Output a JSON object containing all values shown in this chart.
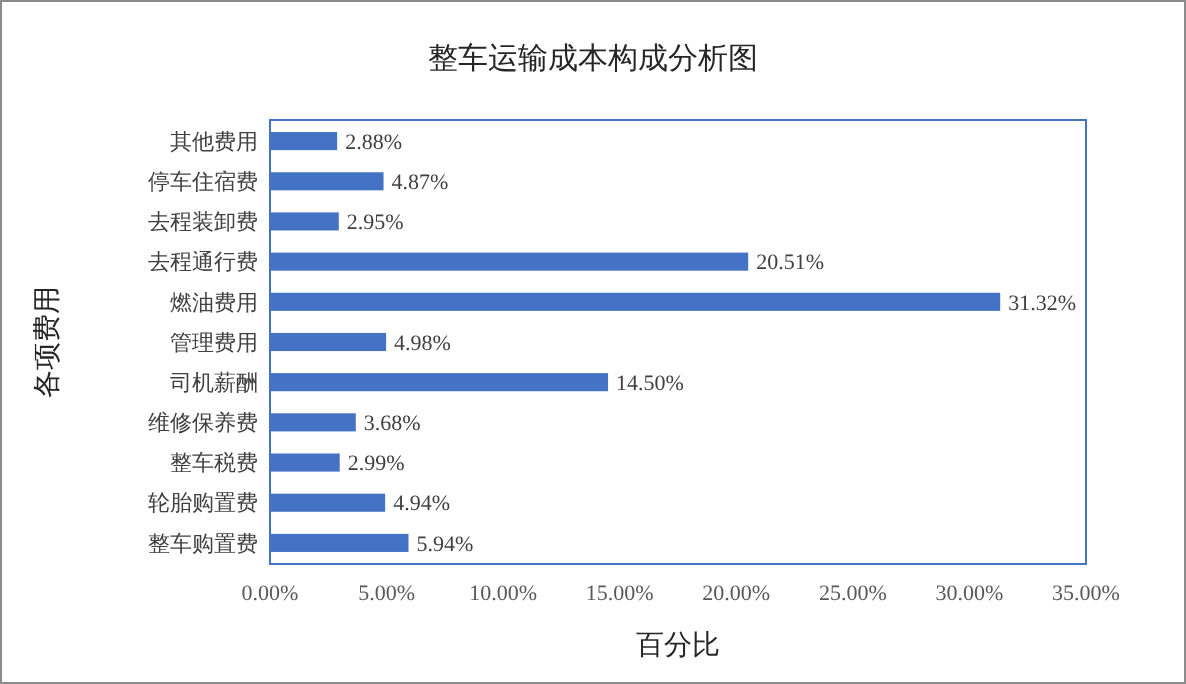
{
  "chart_data": {
    "type": "bar",
    "orientation": "horizontal",
    "title": "整车运输成本构成分析图",
    "xlabel": "百分比",
    "ylabel": "各项费用",
    "categories": [
      "其他费用",
      "停车住宿费",
      "去程装卸费",
      "去程通行费",
      "燃油费用",
      "管理费用",
      "司机薪酬",
      "维修保养费",
      "整车税费",
      "轮胎购置费",
      "整车购置费"
    ],
    "values": [
      2.88,
      4.87,
      2.95,
      20.51,
      31.32,
      4.98,
      14.5,
      3.68,
      2.99,
      4.94,
      5.94
    ],
    "value_labels": [
      "2.88%",
      "4.87%",
      "2.95%",
      "20.51%",
      "31.32%",
      "4.98%",
      "14.50%",
      "3.68%",
      "2.99%",
      "4.94%",
      "5.94%"
    ],
    "color": "#4472c4",
    "xlim": [
      0,
      35
    ],
    "xticks": [
      {
        "value": 0,
        "label": "0.00%"
      },
      {
        "value": 5,
        "label": "5.00%"
      },
      {
        "value": 10,
        "label": "10.00%"
      },
      {
        "value": 15,
        "label": "15.00%"
      },
      {
        "value": 20,
        "label": "20.00%"
      },
      {
        "value": 25,
        "label": "25.00%"
      },
      {
        "value": 30,
        "label": "30.00%"
      },
      {
        "value": 35,
        "label": "35.00%"
      }
    ],
    "grid": false
  }
}
